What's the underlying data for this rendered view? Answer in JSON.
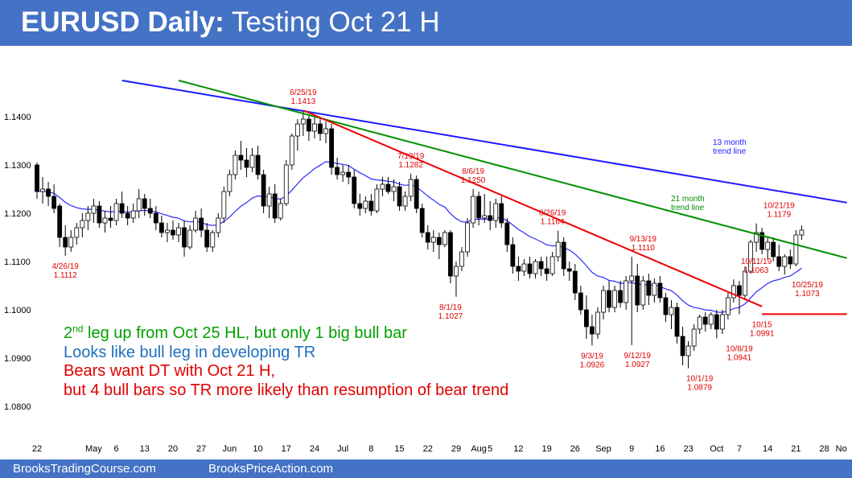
{
  "header": {
    "title_bold": "EURUSD Daily:",
    "title_rest": " Testing Oct 21 H"
  },
  "footer": {
    "left_link": "BrooksTradingCourse.com",
    "right_link": "BrooksPriceAction.com"
  },
  "notes": [
    {
      "pre": "2",
      "sup": "nd",
      "post": " leg up from Oct 25 HL, but only 1 big bull bar",
      "color": "#00a000"
    },
    {
      "pre": "Looks like bull leg in developing TR",
      "sup": "",
      "post": "",
      "color": "#1f6fbf"
    },
    {
      "pre": "Bears want DT with Oct 21 H,",
      "sup": "",
      "post": "",
      "color": "#e00000"
    },
    {
      "pre": "but 4 bull bars so TR more likely than resumption of bear trend",
      "sup": "",
      "post": "",
      "color": "#e00000"
    }
  ],
  "colors": {
    "header_bg": "#4472c4",
    "ema": "#2a2aff",
    "line_blue": "#1a1aff",
    "line_green": "#009000",
    "line_red": "#ee0000",
    "bull_body": "#ffffff",
    "bear_body": "#000000"
  },
  "chart_data": {
    "type": "candlestick",
    "ylim": [
      1.075,
      1.1475
    ],
    "y_ticks": [
      {
        "value": 1.14,
        "label": "1.1400"
      },
      {
        "value": 1.13,
        "label": "1.1300"
      },
      {
        "value": 1.12,
        "label": "1.1200"
      },
      {
        "value": 1.11,
        "label": "1.1100"
      },
      {
        "value": 1.1,
        "label": "1.1000"
      },
      {
        "value": 1.09,
        "label": "1.0900"
      },
      {
        "value": 1.08,
        "label": "1.0800"
      }
    ],
    "x_ticks": [
      {
        "bar": 0,
        "label": "22"
      },
      {
        "bar": 10,
        "label": "May"
      },
      {
        "bar": 14,
        "label": "6"
      },
      {
        "bar": 19,
        "label": "13"
      },
      {
        "bar": 24,
        "label": "20"
      },
      {
        "bar": 29,
        "label": "27"
      },
      {
        "bar": 34,
        "label": "Jun"
      },
      {
        "bar": 39,
        "label": "10"
      },
      {
        "bar": 44,
        "label": "17"
      },
      {
        "bar": 49,
        "label": "24"
      },
      {
        "bar": 54,
        "label": "Jul"
      },
      {
        "bar": 59,
        "label": "8"
      },
      {
        "bar": 64,
        "label": "15"
      },
      {
        "bar": 69,
        "label": "22"
      },
      {
        "bar": 74,
        "label": "29"
      },
      {
        "bar": 78,
        "label": "Aug"
      },
      {
        "bar": 80,
        "label": "5"
      },
      {
        "bar": 85,
        "label": "12"
      },
      {
        "bar": 90,
        "label": "19"
      },
      {
        "bar": 95,
        "label": "26"
      },
      {
        "bar": 100,
        "label": "Sep"
      },
      {
        "bar": 105,
        "label": "9"
      },
      {
        "bar": 110,
        "label": "16"
      },
      {
        "bar": 115,
        "label": "23"
      },
      {
        "bar": 120,
        "label": "Oct"
      },
      {
        "bar": 124,
        "label": "7"
      },
      {
        "bar": 129,
        "label": "14"
      },
      {
        "bar": 134,
        "label": "21"
      },
      {
        "bar": 139,
        "label": "28"
      },
      {
        "bar": 142,
        "label": "No"
      }
    ],
    "bars": [
      [
        1.13,
        1.1305,
        1.123,
        1.1245
      ],
      [
        1.1245,
        1.1275,
        1.122,
        1.125
      ],
      [
        1.125,
        1.1265,
        1.1215,
        1.1235
      ],
      [
        1.1235,
        1.126,
        1.12,
        1.121
      ],
      [
        1.1215,
        1.122,
        1.113,
        1.115
      ],
      [
        1.115,
        1.1175,
        1.1112,
        1.113
      ],
      [
        1.113,
        1.1165,
        1.112,
        1.115
      ],
      [
        1.115,
        1.118,
        1.1135,
        1.117
      ],
      [
        1.117,
        1.12,
        1.115,
        1.1185
      ],
      [
        1.1185,
        1.1215,
        1.1165,
        1.12
      ],
      [
        1.12,
        1.123,
        1.118,
        1.1215
      ],
      [
        1.1215,
        1.1225,
        1.117,
        1.118
      ],
      [
        1.118,
        1.1205,
        1.116,
        1.119
      ],
      [
        1.119,
        1.1215,
        1.117,
        1.1185
      ],
      [
        1.1185,
        1.123,
        1.1175,
        1.122
      ],
      [
        1.122,
        1.1245,
        1.119,
        1.12
      ],
      [
        1.12,
        1.1215,
        1.1175,
        1.119
      ],
      [
        1.119,
        1.122,
        1.118,
        1.1205
      ],
      [
        1.1205,
        1.125,
        1.119,
        1.123
      ],
      [
        1.123,
        1.124,
        1.1195,
        1.121
      ],
      [
        1.121,
        1.123,
        1.119,
        1.12
      ],
      [
        1.12,
        1.1215,
        1.1165,
        1.118
      ],
      [
        1.118,
        1.1195,
        1.115,
        1.116
      ],
      [
        1.116,
        1.118,
        1.114,
        1.1165
      ],
      [
        1.1165,
        1.1185,
        1.1145,
        1.1155
      ],
      [
        1.1155,
        1.118,
        1.114,
        1.117
      ],
      [
        1.117,
        1.1185,
        1.111,
        1.113
      ],
      [
        1.113,
        1.1175,
        1.1125,
        1.1165
      ],
      [
        1.1165,
        1.1205,
        1.116,
        1.119
      ],
      [
        1.119,
        1.121,
        1.115,
        1.1165
      ],
      [
        1.1165,
        1.118,
        1.112,
        1.113
      ],
      [
        1.113,
        1.1165,
        1.112,
        1.116
      ],
      [
        1.116,
        1.12,
        1.115,
        1.119
      ],
      [
        1.119,
        1.1255,
        1.118,
        1.1245
      ],
      [
        1.1245,
        1.129,
        1.1235,
        1.128
      ],
      [
        1.128,
        1.133,
        1.127,
        1.132
      ],
      [
        1.132,
        1.135,
        1.129,
        1.131
      ],
      [
        1.131,
        1.1335,
        1.1275,
        1.1295
      ],
      [
        1.1295,
        1.1335,
        1.1285,
        1.132
      ],
      [
        1.132,
        1.134,
        1.127,
        1.128
      ],
      [
        1.128,
        1.129,
        1.12,
        1.1215
      ],
      [
        1.1215,
        1.1255,
        1.119,
        1.124
      ],
      [
        1.124,
        1.126,
        1.118,
        1.119
      ],
      [
        1.119,
        1.123,
        1.1185,
        1.122
      ],
      [
        1.122,
        1.131,
        1.1215,
        1.13
      ],
      [
        1.13,
        1.1365,
        1.129,
        1.136
      ],
      [
        1.136,
        1.1395,
        1.133,
        1.1385
      ],
      [
        1.1385,
        1.1413,
        1.136,
        1.1395
      ],
      [
        1.1395,
        1.1405,
        1.135,
        1.137
      ],
      [
        1.137,
        1.14,
        1.1355,
        1.1385
      ],
      [
        1.1385,
        1.1395,
        1.135,
        1.1365
      ],
      [
        1.1365,
        1.139,
        1.1345,
        1.1375
      ],
      [
        1.1375,
        1.1385,
        1.128,
        1.1295
      ],
      [
        1.1295,
        1.1315,
        1.127,
        1.128
      ],
      [
        1.128,
        1.13,
        1.1265,
        1.1285
      ],
      [
        1.1285,
        1.13,
        1.126,
        1.1275
      ],
      [
        1.1275,
        1.129,
        1.121,
        1.122
      ],
      [
        1.122,
        1.124,
        1.1195,
        1.121
      ],
      [
        1.121,
        1.1235,
        1.12,
        1.1225
      ],
      [
        1.1225,
        1.124,
        1.1195,
        1.1205
      ],
      [
        1.1205,
        1.126,
        1.12,
        1.125
      ],
      [
        1.125,
        1.1275,
        1.1235,
        1.126
      ],
      [
        1.126,
        1.1275,
        1.124,
        1.1245
      ],
      [
        1.1245,
        1.127,
        1.1225,
        1.1255
      ],
      [
        1.1255,
        1.1265,
        1.1205,
        1.1215
      ],
      [
        1.1215,
        1.1245,
        1.1205,
        1.1235
      ],
      [
        1.1235,
        1.1282,
        1.1225,
        1.127
      ],
      [
        1.127,
        1.1278,
        1.12,
        1.121
      ],
      [
        1.121,
        1.122,
        1.115,
        1.116
      ],
      [
        1.116,
        1.1175,
        1.1125,
        1.114
      ],
      [
        1.114,
        1.1165,
        1.112,
        1.115
      ],
      [
        1.115,
        1.116,
        1.1105,
        1.1135
      ],
      [
        1.1135,
        1.1165,
        1.113,
        1.116
      ],
      [
        1.116,
        1.1165,
        1.1055,
        1.107
      ],
      [
        1.107,
        1.11,
        1.1027,
        1.109
      ],
      [
        1.109,
        1.113,
        1.108,
        1.112
      ],
      [
        1.112,
        1.119,
        1.111,
        1.118
      ],
      [
        1.118,
        1.125,
        1.117,
        1.1235
      ],
      [
        1.1235,
        1.1245,
        1.1175,
        1.119
      ],
      [
        1.119,
        1.124,
        1.118,
        1.1195
      ],
      [
        1.1195,
        1.1225,
        1.1165,
        1.1185
      ],
      [
        1.1185,
        1.123,
        1.117,
        1.122
      ],
      [
        1.122,
        1.1235,
        1.117,
        1.118
      ],
      [
        1.118,
        1.119,
        1.112,
        1.1135
      ],
      [
        1.1135,
        1.115,
        1.1075,
        1.109
      ],
      [
        1.109,
        1.111,
        1.106,
        1.108
      ],
      [
        1.108,
        1.1105,
        1.107,
        1.1095
      ],
      [
        1.1095,
        1.111,
        1.1065,
        1.1075
      ],
      [
        1.1075,
        1.1105,
        1.1065,
        1.11
      ],
      [
        1.11,
        1.111,
        1.107,
        1.1085
      ],
      [
        1.1085,
        1.111,
        1.106,
        1.1075
      ],
      [
        1.1075,
        1.112,
        1.107,
        1.111
      ],
      [
        1.111,
        1.1164,
        1.11,
        1.114
      ],
      [
        1.114,
        1.115,
        1.107,
        1.1085
      ],
      [
        1.1085,
        1.11,
        1.106,
        1.108
      ],
      [
        1.108,
        1.1095,
        1.102,
        1.1035
      ],
      [
        1.1035,
        1.105,
        1.099,
        1.1
      ],
      [
        1.1,
        1.103,
        1.094,
        1.0965
      ],
      [
        1.0965,
        1.099,
        1.0926,
        1.095
      ],
      [
        1.095,
        1.1005,
        1.094,
        1.0995
      ],
      [
        1.0995,
        1.105,
        1.098,
        1.104
      ],
      [
        1.104,
        1.106,
        1.0995,
        1.1005
      ],
      [
        1.1005,
        1.105,
        1.0995,
        1.104
      ],
      [
        1.104,
        1.106,
        1.1005,
        1.1015
      ],
      [
        1.1015,
        1.107,
        1.1,
        1.106
      ],
      [
        1.106,
        1.111,
        1.0927,
        1.107
      ],
      [
        1.107,
        1.1095,
        1.0995,
        1.101
      ],
      [
        1.101,
        1.107,
        1.1,
        1.106
      ],
      [
        1.106,
        1.1075,
        1.101,
        1.103
      ],
      [
        1.103,
        1.1065,
        1.1015,
        1.1055
      ],
      [
        1.1055,
        1.107,
        1.1015,
        1.1025
      ],
      [
        1.1025,
        1.1035,
        1.0975,
        1.099
      ],
      [
        1.099,
        1.102,
        1.096,
        1.1005
      ],
      [
        1.1005,
        1.1015,
        1.093,
        1.0945
      ],
      [
        1.0945,
        1.0965,
        1.0885,
        1.0905
      ],
      [
        1.0905,
        1.0935,
        1.0879,
        1.0925
      ],
      [
        1.0925,
        1.097,
        1.0915,
        1.096
      ],
      [
        1.096,
        1.099,
        1.095,
        1.0985
      ],
      [
        1.0985,
        1.0995,
        1.0955,
        1.097
      ],
      [
        1.097,
        1.0995,
        1.096,
        1.099
      ],
      [
        1.099,
        1.1,
        1.0941,
        1.096
      ],
      [
        1.096,
        1.1,
        1.095,
        1.099
      ],
      [
        1.099,
        1.1035,
        1.098,
        1.1025
      ],
      [
        1.1025,
        1.1063,
        1.1015,
        1.105
      ],
      [
        1.105,
        1.106,
        1.0991,
        1.103
      ],
      [
        1.103,
        1.109,
        1.102,
        1.108
      ],
      [
        1.108,
        1.1145,
        1.1075,
        1.114
      ],
      [
        1.114,
        1.1179,
        1.112,
        1.116
      ],
      [
        1.116,
        1.117,
        1.1115,
        1.1125
      ],
      [
        1.1125,
        1.115,
        1.1105,
        1.114
      ],
      [
        1.114,
        1.115,
        1.11,
        1.111
      ],
      [
        1.111,
        1.1135,
        1.108,
        1.109
      ],
      [
        1.109,
        1.1115,
        1.1073,
        1.111
      ],
      [
        1.111,
        1.1125,
        1.1085,
        1.1095
      ],
      [
        1.1095,
        1.1165,
        1.109,
        1.1155
      ],
      [
        1.1155,
        1.1175,
        1.1145,
        1.1165
      ]
    ],
    "ema_label": "",
    "trend_lines": [
      {
        "from_bar": 15,
        "from": 1.1475,
        "to_bar": 143,
        "to": 1.1222,
        "color": "#1a1aff",
        "label": "13 month\ntrend line"
      },
      {
        "from_bar": 25,
        "from": 1.1475,
        "to_bar": 143,
        "to": 1.1107,
        "color": "#009000",
        "label": "21 month\ntrend line"
      },
      {
        "from_bar": 47,
        "from": 1.1413,
        "to_bar": 128,
        "to": 1.1007,
        "color": "#ee0000",
        "label": ""
      },
      {
        "from_bar": 128,
        "from": 1.0991,
        "to_bar": 143,
        "to": 1.0991,
        "color": "#ee0000",
        "label": ""
      }
    ],
    "annotations": [
      {
        "bar": 5,
        "value": 1.1112,
        "text": "4/26/19\n1.1112",
        "pos": "below"
      },
      {
        "bar": 47,
        "value": 1.1413,
        "text": "6/25/19\n1.1413",
        "pos": "above"
      },
      {
        "bar": 66,
        "value": 1.1282,
        "text": "7/19/19\n1.1282",
        "pos": "above"
      },
      {
        "bar": 77,
        "value": 1.125,
        "text": "8/6/19\n1.1250",
        "pos": "above"
      },
      {
        "bar": 73,
        "value": 1.1027,
        "text": "8/1/19\n1.1027",
        "pos": "below"
      },
      {
        "bar": 91,
        "value": 1.1164,
        "text": "8/26/19\n1.1164",
        "pos": "above"
      },
      {
        "bar": 98,
        "value": 1.0926,
        "text": "9/3/19\n1.0926",
        "pos": "below"
      },
      {
        "bar": 106,
        "value": 1.0927,
        "text": "9/12/19\n1.0927",
        "pos": "below"
      },
      {
        "bar": 107,
        "value": 1.111,
        "text": "9/13/19\n1.1110",
        "pos": "above"
      },
      {
        "bar": 117,
        "value": 1.0879,
        "text": "10/1/19\n1.0879",
        "pos": "below"
      },
      {
        "bar": 124,
        "value": 1.0941,
        "text": "10/8/19\n1.0941",
        "pos": "below"
      },
      {
        "bar": 127,
        "value": 1.1063,
        "text": "10/11/19\n1.1063",
        "pos": "above"
      },
      {
        "bar": 128,
        "value": 1.0991,
        "text": "10/15\n1.0991",
        "pos": "below"
      },
      {
        "bar": 131,
        "value": 1.1179,
        "text": "10/21/19\n1.1179",
        "pos": "above"
      },
      {
        "bar": 136,
        "value": 1.1073,
        "text": "10/25/19\n1.1073",
        "pos": "below"
      }
    ]
  }
}
